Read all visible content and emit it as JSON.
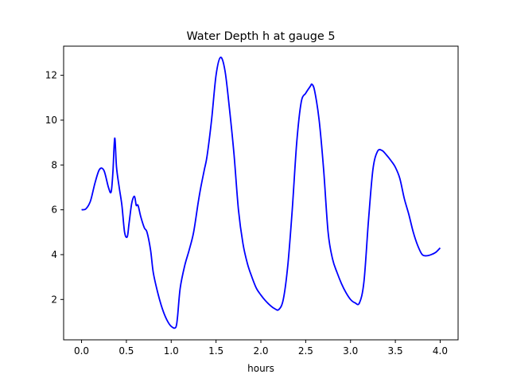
{
  "chart_data": {
    "type": "line",
    "title": "Water Depth h at gauge 5",
    "xlabel": "hours",
    "ylabel": "",
    "xlim": [
      -0.2,
      4.2
    ],
    "ylim": [
      0.2,
      13.3
    ],
    "xticks": [
      0.0,
      0.5,
      1.0,
      1.5,
      2.0,
      2.5,
      3.0,
      3.5,
      4.0
    ],
    "xtick_labels": [
      "0.0",
      "0.5",
      "1.0",
      "1.5",
      "2.0",
      "2.5",
      "3.0",
      "3.5",
      "4.0"
    ],
    "yticks": [
      2,
      4,
      6,
      8,
      10,
      12
    ],
    "ytick_labels": [
      "2",
      "4",
      "6",
      "8",
      "10",
      "12"
    ],
    "grid": false,
    "series": [
      {
        "color": "#0000ff",
        "x": [
          0.0,
          0.05,
          0.1,
          0.15,
          0.2,
          0.25,
          0.3,
          0.33,
          0.35,
          0.37,
          0.39,
          0.42,
          0.45,
          0.48,
          0.51,
          0.53,
          0.56,
          0.59,
          0.61,
          0.63,
          0.66,
          0.7,
          0.73,
          0.77,
          0.8,
          0.85,
          0.9,
          0.95,
          1.0,
          1.05,
          1.07,
          1.1,
          1.15,
          1.2,
          1.25,
          1.3,
          1.33,
          1.37,
          1.4,
          1.45,
          1.5,
          1.55,
          1.6,
          1.65,
          1.7,
          1.75,
          1.8,
          1.85,
          1.9,
          1.95,
          2.0,
          2.05,
          2.1,
          2.15,
          2.2,
          2.25,
          2.3,
          2.35,
          2.4,
          2.45,
          2.5,
          2.55,
          2.57,
          2.6,
          2.65,
          2.7,
          2.75,
          2.8,
          2.85,
          2.9,
          2.95,
          3.0,
          3.05,
          3.1,
          3.15,
          3.2,
          3.25,
          3.3,
          3.35,
          3.4,
          3.45,
          3.5,
          3.55,
          3.6,
          3.65,
          3.7,
          3.75,
          3.8,
          3.85,
          3.9,
          3.95,
          4.0
        ],
        "y": [
          6.0,
          6.05,
          6.4,
          7.2,
          7.8,
          7.75,
          7.0,
          6.8,
          7.7,
          9.2,
          7.9,
          7.0,
          6.2,
          5.0,
          4.8,
          5.4,
          6.3,
          6.6,
          6.2,
          6.2,
          5.7,
          5.2,
          5.0,
          4.2,
          3.2,
          2.3,
          1.6,
          1.1,
          0.8,
          0.75,
          1.2,
          2.5,
          3.5,
          4.2,
          5.0,
          6.3,
          7.0,
          7.8,
          8.4,
          10.0,
          12.0,
          12.8,
          12.2,
          10.5,
          8.5,
          6.0,
          4.5,
          3.6,
          3.0,
          2.5,
          2.2,
          1.95,
          1.75,
          1.6,
          1.55,
          2.0,
          3.5,
          6.0,
          9.0,
          10.8,
          11.2,
          11.5,
          11.6,
          11.3,
          10.0,
          7.8,
          5.0,
          3.8,
          3.2,
          2.7,
          2.3,
          2.0,
          1.85,
          1.85,
          2.8,
          5.5,
          7.8,
          8.6,
          8.65,
          8.45,
          8.2,
          7.9,
          7.4,
          6.5,
          5.8,
          5.0,
          4.4,
          4.0,
          3.95,
          4.0,
          4.1,
          4.3
        ]
      }
    ]
  }
}
